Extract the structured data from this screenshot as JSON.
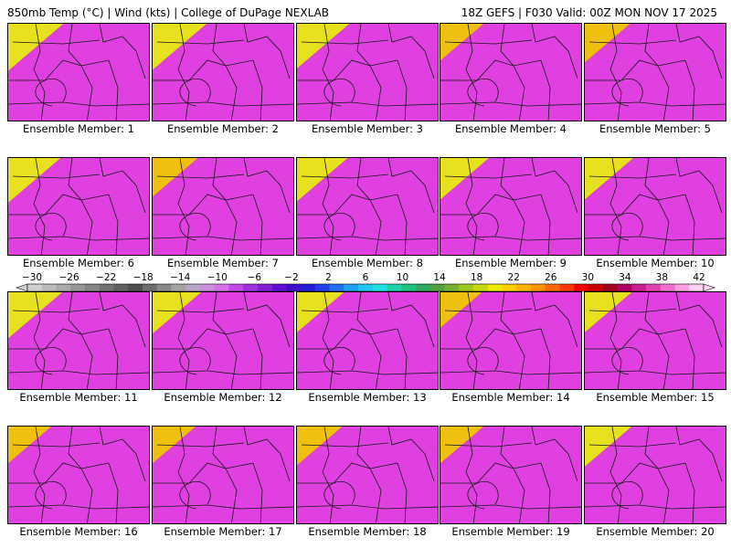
{
  "header": {
    "title": "850mb Temp (°C) | Wind (kts) | College of DuPage NEXLAB",
    "run_info": "18Z GEFS | F030 Valid: 00Z MON NOV 17 2025"
  },
  "panels": [
    {
      "label": "Ensemble Member: 1",
      "warmth": 0.4
    },
    {
      "label": "Ensemble Member: 2",
      "warmth": 0.42
    },
    {
      "label": "Ensemble Member: 3",
      "warmth": 0.45
    },
    {
      "label": "Ensemble Member: 4",
      "warmth": 0.62
    },
    {
      "label": "Ensemble Member: 5",
      "warmth": 0.58
    },
    {
      "label": "Ensemble Member: 6",
      "warmth": 0.45
    },
    {
      "label": "Ensemble Member: 7",
      "warmth": 0.58
    },
    {
      "label": "Ensemble Member: 8",
      "warmth": 0.48
    },
    {
      "label": "Ensemble Member: 9",
      "warmth": 0.52
    },
    {
      "label": "Ensemble Member: 10",
      "warmth": 0.52
    },
    {
      "label": "Ensemble Member: 11",
      "warmth": 0.42
    },
    {
      "label": "Ensemble Member: 12",
      "warmth": 0.52
    },
    {
      "label": "Ensemble Member: 13",
      "warmth": 0.55
    },
    {
      "label": "Ensemble Member: 14",
      "warmth": 0.65
    },
    {
      "label": "Ensemble Member: 15",
      "warmth": 0.55
    },
    {
      "label": "Ensemble Member: 16",
      "warmth": 0.62
    },
    {
      "label": "Ensemble Member: 17",
      "warmth": 0.62
    },
    {
      "label": "Ensemble Member: 18",
      "warmth": 0.58
    },
    {
      "label": "Ensemble Member: 19",
      "warmth": 0.62
    },
    {
      "label": "Ensemble Member: 20",
      "warmth": 0.55
    }
  ],
  "colorbar": {
    "labels": [
      "-30",
      "-26",
      "-22",
      "-18",
      "-14",
      "-10",
      "-6",
      "-2",
      "2",
      "6",
      "10",
      "14",
      "18",
      "22",
      "26",
      "30",
      "34",
      "38",
      "42"
    ],
    "colors": [
      "#cfcfcf",
      "#bdbdbd",
      "#aaaaaa",
      "#979797",
      "#858585",
      "#727272",
      "#606060",
      "#4e4e4e",
      "#6e6e6e",
      "#8a8a8a",
      "#a5a5a5",
      "#b8a7c8",
      "#cc8fe0",
      "#d872e8",
      "#c04ae8",
      "#a030e0",
      "#8020d0",
      "#6010d0",
      "#4010c8",
      "#2020d0",
      "#2040e8",
      "#2070f0",
      "#20a0f0",
      "#20c8f0",
      "#20e0e0",
      "#20d0a8",
      "#20c080",
      "#30a860",
      "#50a040",
      "#78b030",
      "#a0c820",
      "#c8d810",
      "#f0e800",
      "#ffd000",
      "#ffb000",
      "#ff9000",
      "#ff6800",
      "#ff3800",
      "#f00000",
      "#c80000",
      "#a00020",
      "#b00060",
      "#c82090",
      "#e040b0",
      "#f070d0",
      "#ffa0e0",
      "#ffd0f0"
    ]
  },
  "map_colors": {
    "magenta": "#e040e0",
    "purple": "#8a2be2",
    "deep_blue": "#1e2bd8",
    "blue": "#3a7ee8",
    "cyan": "#1ad2ee",
    "teal": "#22c8a8",
    "green": "#2ea85a",
    "lime": "#8fcc3a",
    "yellow": "#e6e01e",
    "gold": "#f0c010"
  }
}
